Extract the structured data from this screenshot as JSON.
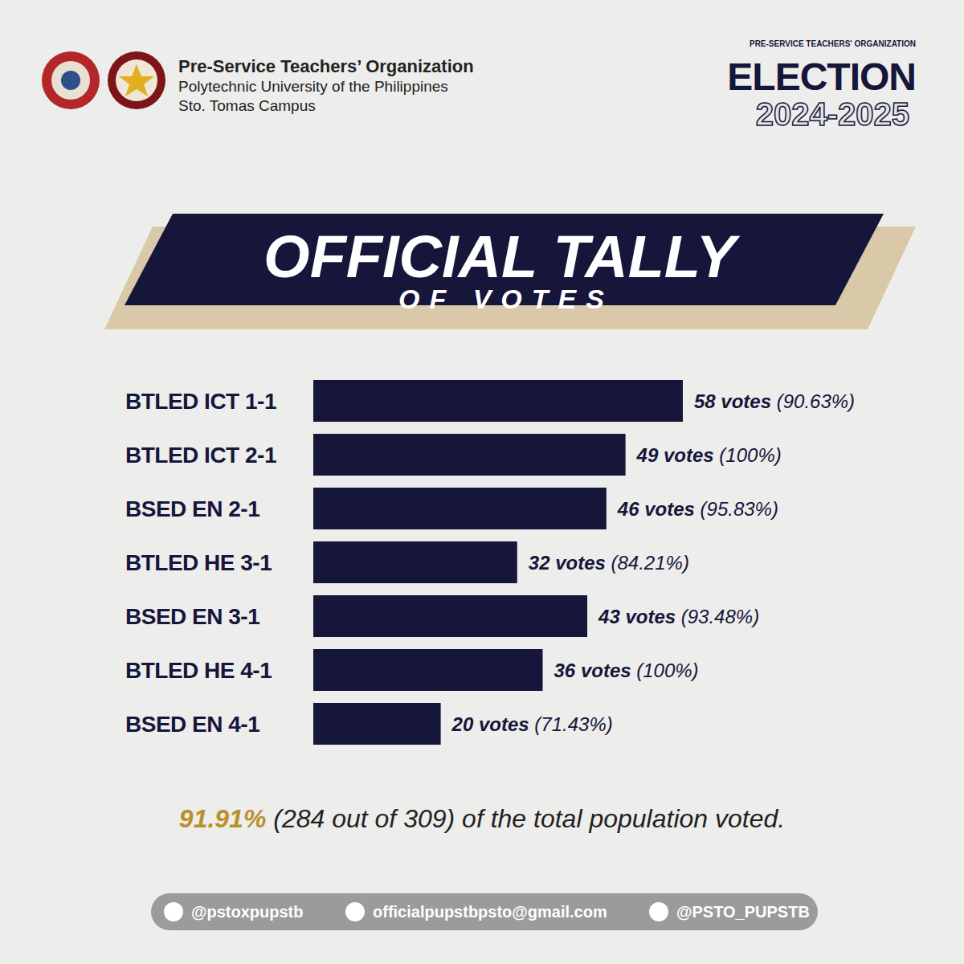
{
  "header": {
    "organization": "Pre-Service Teachers’ Organization",
    "university": "Polytechnic University of the Philippines",
    "campus": "Sto. Tomas Campus"
  },
  "election_logo": {
    "arc_text": "PRE-SERVICE TEACHERS' ORGANIZATION",
    "word": "ELECTION",
    "years": "2024-2025"
  },
  "chart_data": {
    "type": "bar",
    "orientation": "horizontal",
    "title": "OFFICIAL TALLY",
    "subtitle": "OF VOTES",
    "categories": [
      "BTLED ICT 1-1",
      "BTLED ICT 2-1",
      "BSED EN 2-1",
      "BTLED HE 3-1",
      "BSED EN 3-1",
      "BTLED HE 4-1",
      "BSED EN 4-1"
    ],
    "values": [
      58,
      49,
      46,
      32,
      43,
      36,
      20
    ],
    "value_labels": [
      "58 votes (90.63%)",
      "49 votes (100%)",
      "46 votes (95.83%)",
      "32 votes (84.21%)",
      "43 votes (93.48%)",
      "36 votes (100%)",
      "20 votes (71.43%)"
    ],
    "color": "#15163a",
    "xlim": [
      0,
      58
    ],
    "tick_labels": "y",
    "data_labels": true,
    "grid": false
  },
  "footer": {
    "highlight": "91.91%",
    "text": "(284 out of 309) of the total population voted."
  },
  "contacts": {
    "facebook": "@pstoxpupstb",
    "email": "officialpupstbpsto@gmail.com",
    "x": "@PSTO_PUPSTB"
  }
}
